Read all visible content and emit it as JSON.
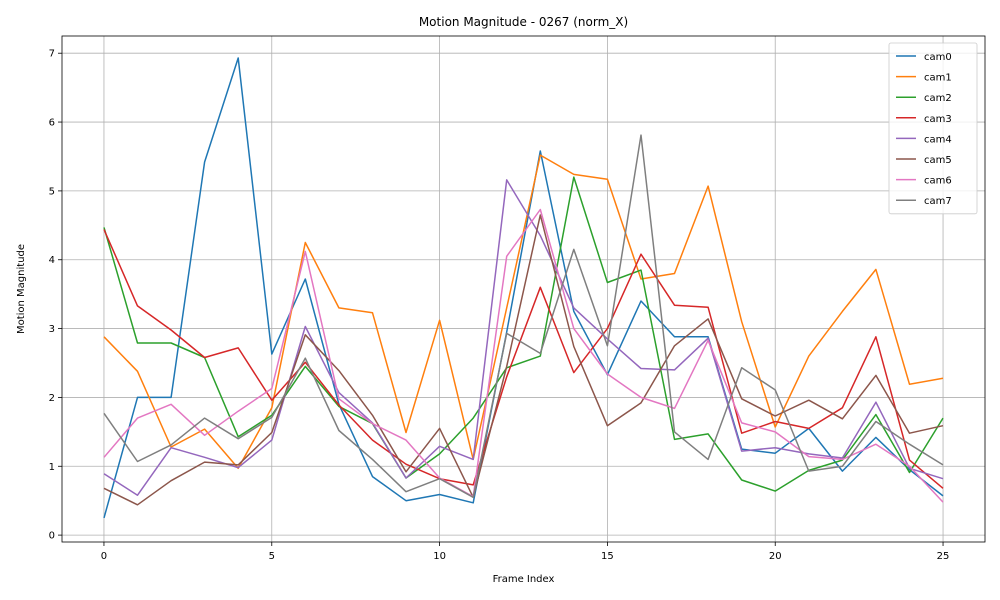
{
  "chart_data": {
    "type": "line",
    "title": "Motion Magnitude - 0267 (norm_X)",
    "xlabel": "Frame Index",
    "ylabel": "Motion Magnitude",
    "xlim": [
      -1.25,
      26.25
    ],
    "ylim": [
      -0.1,
      7.25
    ],
    "xticks": [
      0,
      5,
      10,
      15,
      20,
      25
    ],
    "yticks": [
      0,
      1,
      2,
      3,
      4,
      5,
      6,
      7
    ],
    "grid": true,
    "legend_position": "top-right",
    "x": [
      0,
      1,
      2,
      3,
      4,
      5,
      6,
      7,
      8,
      9,
      10,
      11,
      12,
      13,
      14,
      15,
      16,
      17,
      18,
      19,
      20,
      21,
      22,
      23,
      24,
      25
    ],
    "series": [
      {
        "name": "cam0",
        "color": "#1f77b4",
        "values": [
          0.25,
          2.0,
          2.0,
          5.42,
          6.93,
          2.63,
          3.72,
          1.9,
          0.85,
          0.5,
          0.59,
          0.47,
          2.95,
          5.58,
          3.25,
          2.33,
          3.4,
          2.88,
          2.88,
          1.25,
          1.19,
          1.55,
          0.93,
          1.42,
          0.95,
          0.57
        ]
      },
      {
        "name": "cam1",
        "color": "#ff7f0e",
        "values": [
          2.88,
          2.38,
          1.28,
          1.54,
          0.97,
          1.85,
          4.25,
          3.3,
          3.23,
          1.49,
          3.12,
          1.1,
          3.3,
          5.52,
          5.24,
          5.17,
          3.72,
          3.8,
          5.07,
          3.1,
          1.57,
          2.6,
          3.25,
          3.86,
          2.19,
          2.28
        ]
      },
      {
        "name": "cam2",
        "color": "#2ca02c",
        "values": [
          4.47,
          2.79,
          2.79,
          2.58,
          1.43,
          1.74,
          2.45,
          1.87,
          1.62,
          0.83,
          1.18,
          1.7,
          2.43,
          2.6,
          5.2,
          3.67,
          3.85,
          1.39,
          1.47,
          0.8,
          0.64,
          0.94,
          1.09,
          1.75,
          0.91,
          1.7
        ]
      },
      {
        "name": "cam3",
        "color": "#d62728",
        "values": [
          4.44,
          3.33,
          2.98,
          2.58,
          2.72,
          1.96,
          2.51,
          1.89,
          1.38,
          1.03,
          0.82,
          0.73,
          2.3,
          3.6,
          2.36,
          3.0,
          4.08,
          3.34,
          3.31,
          1.48,
          1.65,
          1.55,
          1.85,
          2.88,
          1.09,
          0.68
        ]
      },
      {
        "name": "cam4",
        "color": "#9467bd",
        "values": [
          0.89,
          0.58,
          1.27,
          1.13,
          0.98,
          1.38,
          3.03,
          2.07,
          1.63,
          0.83,
          1.29,
          1.1,
          5.16,
          4.35,
          3.3,
          2.85,
          2.42,
          2.4,
          2.86,
          1.22,
          1.27,
          1.18,
          1.12,
          1.93,
          0.97,
          0.82
        ]
      },
      {
        "name": "cam5",
        "color": "#8c564b",
        "values": [
          0.68,
          0.44,
          0.79,
          1.06,
          1.02,
          1.49,
          2.91,
          2.39,
          1.74,
          0.92,
          1.55,
          0.55,
          2.45,
          4.65,
          2.74,
          1.59,
          1.92,
          2.75,
          3.14,
          1.98,
          1.73,
          1.96,
          1.69,
          2.32,
          1.48,
          1.59
        ]
      },
      {
        "name": "cam6",
        "color": "#e377c2",
        "values": [
          1.13,
          1.7,
          1.9,
          1.45,
          1.8,
          2.13,
          4.12,
          1.98,
          1.62,
          1.38,
          0.83,
          0.56,
          4.05,
          4.73,
          3.0,
          2.34,
          2.0,
          1.84,
          2.83,
          1.63,
          1.5,
          1.14,
          1.1,
          1.32,
          1.0,
          0.48
        ]
      },
      {
        "name": "cam7",
        "color": "#7f7f7f",
        "values": [
          1.77,
          1.07,
          1.31,
          1.7,
          1.4,
          1.71,
          2.57,
          1.52,
          1.1,
          0.63,
          0.82,
          0.55,
          2.93,
          2.64,
          4.15,
          2.75,
          5.81,
          1.5,
          1.1,
          2.43,
          2.11,
          0.93,
          1.0,
          1.65,
          1.32,
          1.02
        ]
      }
    ]
  }
}
